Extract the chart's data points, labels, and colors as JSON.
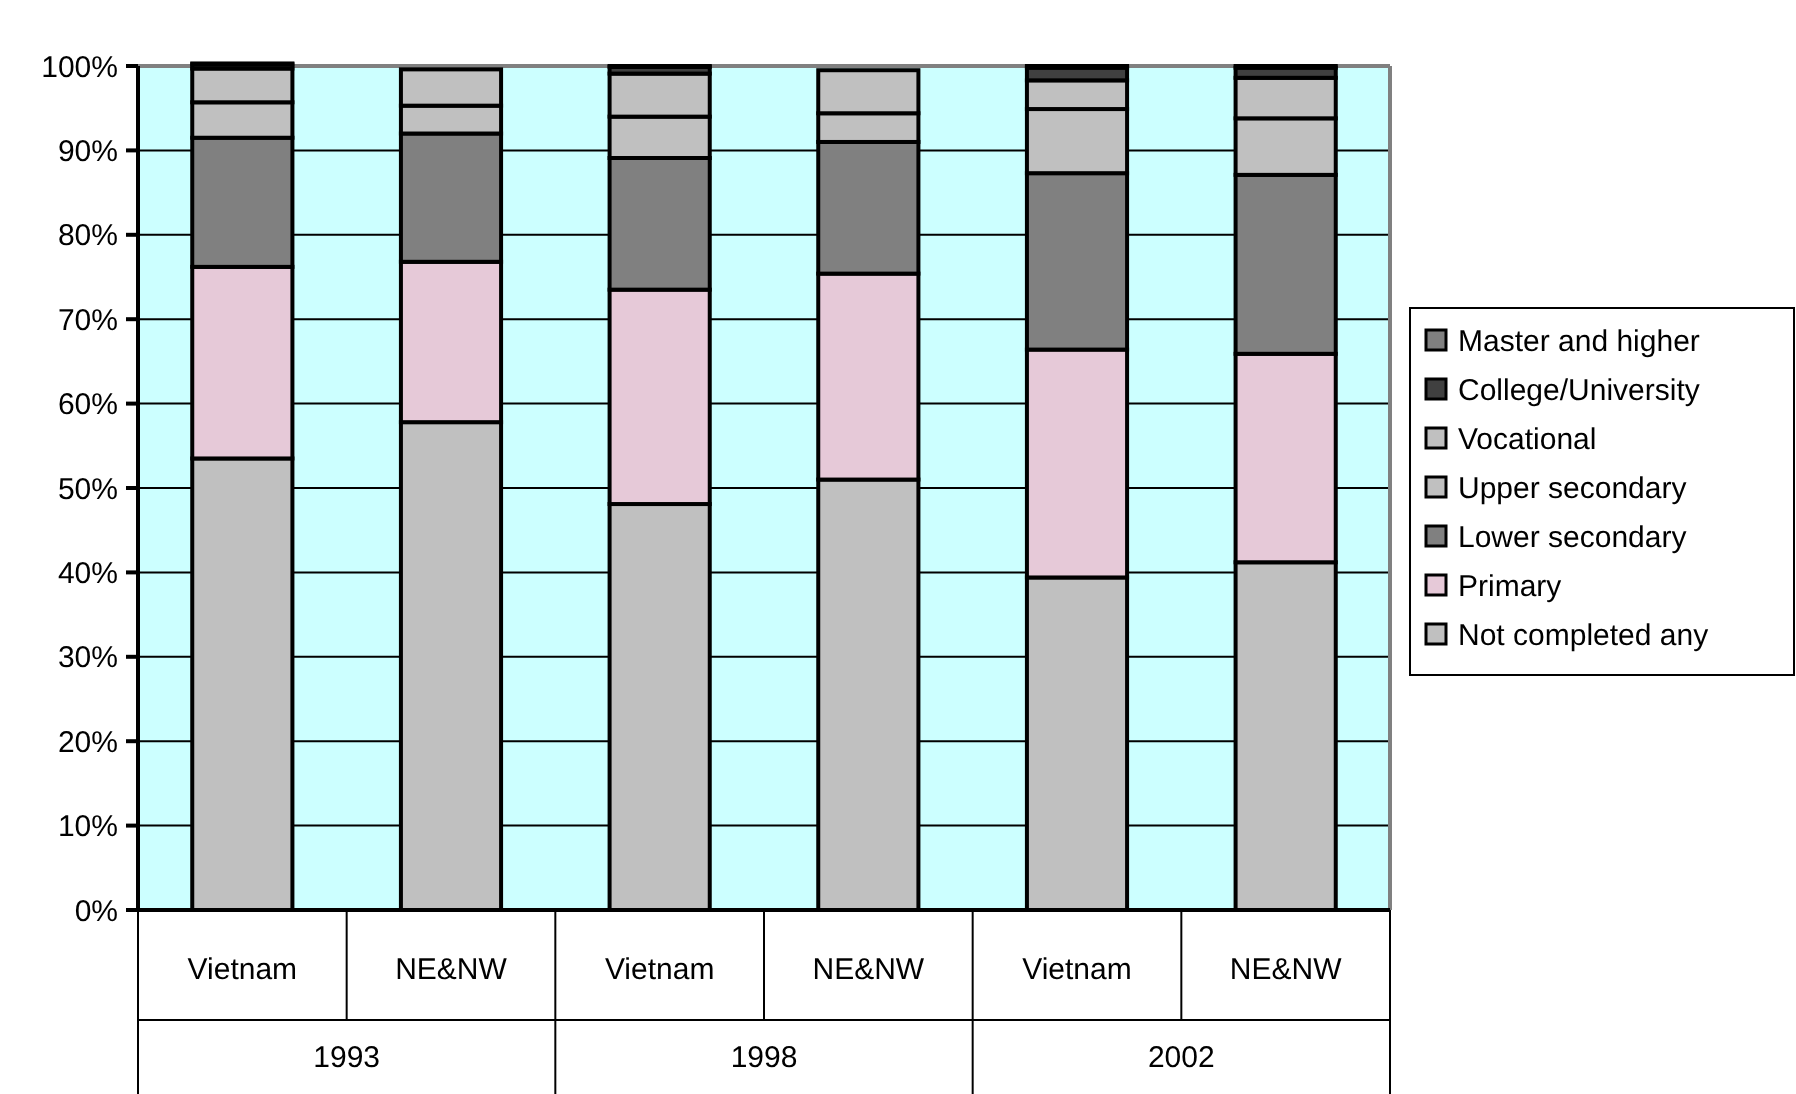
{
  "chart_data": {
    "type": "bar",
    "stacked": true,
    "categories": [
      "Vietnam",
      "NE&NW",
      "Vietnam",
      "NE&NW",
      "Vietnam",
      "NE&NW"
    ],
    "annotations": [
      "1993",
      "1998",
      "2002"
    ],
    "series": [
      {
        "name": "Not completed any",
        "color": "#c0c0c0",
        "values": [
          53.5,
          57.8,
          48.1,
          51,
          39.4,
          41.2
        ]
      },
      {
        "name": "Primary",
        "color": "#e6c9d8",
        "values": [
          22.7,
          19,
          25.4,
          24.4,
          27,
          24.7
        ]
      },
      {
        "name": "Lower secondary",
        "color": "#808080",
        "values": [
          15.3,
          15.2,
          15.6,
          15.6,
          20.9,
          21.2
        ]
      },
      {
        "name": "Upper secondary",
        "color": "#c0c0c0",
        "values": [
          4.2,
          3.3,
          4.9,
          3.4,
          7.6,
          6.7
        ]
      },
      {
        "name": "Vocational",
        "color": "#c0c0c0",
        "values": [
          4,
          4.3,
          5.1,
          5.1,
          3.4,
          4.8
        ]
      },
      {
        "name": "College/University",
        "color": "#404040",
        "values": [
          0.5,
          null,
          0.8,
          null,
          1.5,
          1.2
        ]
      },
      {
        "name": "Master and higher",
        "color": "#808080",
        "values": [
          0.1,
          null,
          0.1,
          null,
          0.2,
          0.2
        ]
      }
    ],
    "ylim": [
      0,
      100
    ],
    "yticks": [
      {
        "value": 0,
        "label": "0%"
      },
      {
        "value": 10,
        "label": "10%"
      },
      {
        "value": 20,
        "label": "20%"
      },
      {
        "value": 30,
        "label": "30%"
      },
      {
        "value": 40,
        "label": "40%"
      },
      {
        "value": 50,
        "label": "50%"
      },
      {
        "value": 60,
        "label": "60%"
      },
      {
        "value": 70,
        "label": "70%"
      },
      {
        "value": 80,
        "label": "80%"
      },
      {
        "value": 90,
        "label": "90%"
      },
      {
        "value": 100,
        "label": "100%"
      }
    ],
    "grid": "y",
    "legend": "right"
  }
}
